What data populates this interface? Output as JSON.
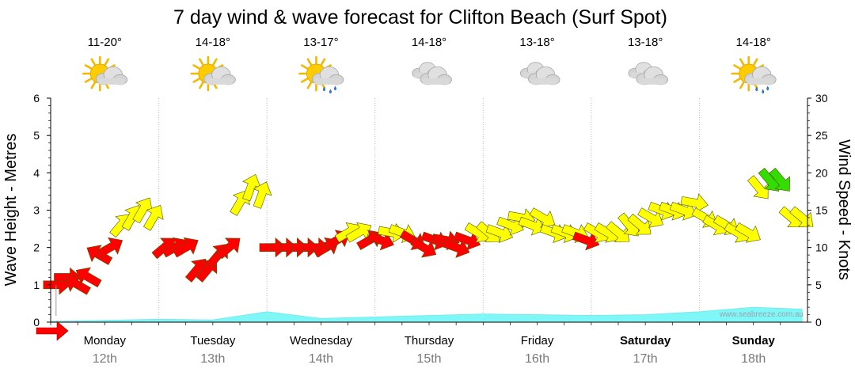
{
  "chart_data": {
    "type": "line",
    "title": "7 day wind & wave forecast for Clifton Beach (Surf Spot)",
    "ylabel_left": "Wave Height - Metres",
    "ylabel_right": "Wind Speed - Knots",
    "ylim_left": [
      0,
      6
    ],
    "ylim_right": [
      0,
      30
    ],
    "yticks_left": [
      "0",
      "1",
      "2",
      "3",
      "4",
      "5",
      "6"
    ],
    "yticks_right": [
      "0",
      "5",
      "10",
      "15",
      "20",
      "25",
      "30"
    ],
    "watermark": "www.seabreeze.com.au",
    "days": [
      {
        "name": "Monday",
        "date": "12th",
        "temp": "11-20°",
        "weather_icon": "sun-cloud-icon",
        "bold": false
      },
      {
        "name": "Tuesday",
        "date": "13th",
        "temp": "14-18°",
        "weather_icon": "sun-cloud-icon",
        "bold": false
      },
      {
        "name": "Wednesday",
        "date": "14th",
        "temp": "13-17°",
        "weather_icon": "sun-cloud-rain-icon",
        "bold": false
      },
      {
        "name": "Thursday",
        "date": "15th",
        "temp": "14-18°",
        "weather_icon": "cloud-icon",
        "bold": false
      },
      {
        "name": "Friday",
        "date": "16th",
        "temp": "13-18°",
        "weather_icon": "cloud-icon",
        "bold": false
      },
      {
        "name": "Saturday",
        "date": "17th",
        "temp": "13-18°",
        "weather_icon": "cloud-icon",
        "bold": true
      },
      {
        "name": "Sunday",
        "date": "18th",
        "temp": "14-18°",
        "weather_icon": "sun-cloud-rain-icon",
        "bold": true
      }
    ],
    "series": [
      {
        "name": "Wind Speed",
        "unit": "knots",
        "note": "hourly-ish points; x in days from Monday 00:00",
        "x": [
          0.05,
          0.15,
          0.25,
          0.35,
          0.45,
          0.55,
          0.65,
          0.75,
          0.85,
          0.95,
          1.05,
          1.15,
          1.25,
          1.35,
          1.45,
          1.55,
          1.65,
          1.75,
          1.85,
          1.95,
          2.05,
          2.15,
          2.25,
          2.35,
          2.45,
          2.55,
          2.65,
          2.75,
          2.85,
          2.95,
          3.05,
          3.15,
          3.25,
          3.35,
          3.45,
          3.55,
          3.65,
          3.75,
          3.85,
          3.95,
          4.05,
          4.15,
          4.25,
          4.35,
          4.45,
          4.55,
          4.65,
          4.75,
          4.85,
          4.95,
          5.05,
          5.15,
          5.25,
          5.35,
          5.45,
          5.55,
          5.65,
          5.75,
          5.85,
          5.95,
          6.05,
          6.15,
          6.25,
          6.35,
          6.45,
          6.55,
          6.65,
          6.75,
          6.85,
          6.95
        ],
        "values": [
          5,
          6,
          5,
          6,
          9,
          10,
          13,
          14,
          15,
          14,
          10,
          10,
          10,
          7,
          7,
          9,
          10,
          16,
          18,
          17,
          10,
          10,
          10,
          10,
          10,
          10,
          11,
          12,
          12,
          11,
          11,
          12,
          12,
          11,
          10,
          11,
          11,
          10,
          11,
          12,
          12,
          12,
          13,
          14,
          13,
          14,
          12,
          12,
          12,
          11,
          12,
          12,
          12,
          13,
          13,
          14,
          15,
          15,
          15,
          16,
          14,
          13,
          13,
          12,
          12,
          18,
          19,
          19,
          14,
          14
        ],
        "direction_deg": [
          90,
          90,
          300,
          300,
          300,
          60,
          40,
          30,
          30,
          30,
          50,
          60,
          60,
          40,
          40,
          40,
          50,
          30,
          20,
          20,
          90,
          90,
          90,
          90,
          90,
          60,
          60,
          60,
          60,
          60,
          110,
          100,
          110,
          120,
          120,
          110,
          100,
          110,
          110,
          120,
          130,
          110,
          110,
          100,
          110,
          120,
          110,
          110,
          110,
          110,
          120,
          120,
          130,
          140,
          130,
          120,
          110,
          110,
          110,
          100,
          120,
          120,
          120,
          120,
          120,
          140,
          140,
          140,
          130,
          130
        ],
        "colors_by_speed": {
          "lt12": "#ff0000",
          "12to18": "#ffff00",
          "gt18": "#33dd00"
        }
      },
      {
        "name": "Wave Height",
        "unit": "m",
        "x": [
          0,
          0.5,
          1,
          1.5,
          2,
          2.5,
          3,
          3.5,
          4,
          4.5,
          5,
          5.5,
          6,
          6.5,
          6.95
        ],
        "values": [
          0.02,
          0.05,
          0.08,
          0.06,
          0.28,
          0.1,
          0.14,
          0.18,
          0.22,
          0.2,
          0.18,
          0.2,
          0.28,
          0.4,
          0.35
        ]
      }
    ]
  }
}
